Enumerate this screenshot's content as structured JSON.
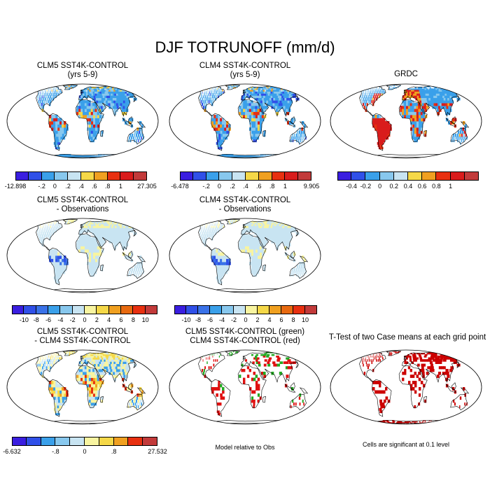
{
  "title": "DJF TOTRUNOFF (mm/d)",
  "chart_data": [
    {
      "type": "heatmap",
      "title": [
        "CLM5 SST4K-CONTROL",
        "(yrs 5-9)"
      ],
      "projection": "robinson",
      "colorbar_labels": [
        "-12.898",
        "-.2",
        "0",
        ".2",
        ".4",
        ".6",
        ".8",
        "1",
        "27.305"
      ],
      "colors": [
        "#3a1ee0",
        "#3050e8",
        "#3aa0ea",
        "#88c8ee",
        "#c8e4f2",
        "#f5d848",
        "#f0a020",
        "#e83010",
        "#d91c1c",
        "#c23a3a"
      ]
    },
    {
      "type": "heatmap",
      "title": [
        "CLM4 SST4K-CONTROL",
        "(yrs 5-9)"
      ],
      "projection": "robinson",
      "colorbar_labels": [
        "-6.478",
        "-.2",
        "0",
        ".2",
        ".4",
        ".6",
        ".8",
        "1",
        "9.905"
      ],
      "colors": [
        "#3a1ee0",
        "#3050e8",
        "#3aa0ea",
        "#88c8ee",
        "#c8e4f2",
        "#f5d848",
        "#f0a020",
        "#e83010",
        "#d91c1c",
        "#c23a3a"
      ]
    },
    {
      "type": "heatmap",
      "title": [
        "GRDC"
      ],
      "projection": "robinson",
      "colorbar_labels": [
        "-0.4",
        "-0.2",
        "0",
        "0.2",
        "0.4",
        "0.6",
        "0.8",
        "1"
      ],
      "colors": [
        "#3a1ee0",
        "#3050e8",
        "#3aa0ea",
        "#88c8ee",
        "#c8e4f2",
        "#f5d848",
        "#f0a020",
        "#e83010",
        "#d91c1c",
        "#c23a3a"
      ]
    },
    {
      "type": "heatmap",
      "title": [
        "CLM5 SST4K-CONTROL",
        "- Observations"
      ],
      "projection": "robinson",
      "colorbar_labels": [
        "-10",
        "-8",
        "-6",
        "-4",
        "-2",
        "0",
        "2",
        "4",
        "6",
        "8",
        "10"
      ],
      "colors": [
        "#3a1ee0",
        "#3050e8",
        "#3a72e8",
        "#3aa0ea",
        "#88c8ee",
        "#c8e4f2",
        "#f8f4a0",
        "#f5d848",
        "#f0a020",
        "#e86a10",
        "#e83010",
        "#c23a3a"
      ]
    },
    {
      "type": "heatmap",
      "title": [
        "CLM4 SST4K-CONTROL",
        "- Observations"
      ],
      "projection": "robinson",
      "colorbar_labels": [
        "-10",
        "-8",
        "-6",
        "-4",
        "-2",
        "0",
        "2",
        "4",
        "6",
        "8",
        "10"
      ],
      "colors": [
        "#3a1ee0",
        "#3050e8",
        "#3a72e8",
        "#3aa0ea",
        "#88c8ee",
        "#c8e4f2",
        "#f8f4a0",
        "#f5d848",
        "#f0a020",
        "#e86a10",
        "#e83010",
        "#c23a3a"
      ]
    },
    {
      "type": "heatmap",
      "title": [
        "CLM5 SST4K-CONTROL",
        "- CLM4 SST4K-CONTROL"
      ],
      "projection": "robinson",
      "colorbar_labels": [
        "-6.632",
        "-.8",
        "0",
        ".8",
        "27.532"
      ],
      "colors": [
        "#3a1ee0",
        "#3050e8",
        "#3aa0ea",
        "#88c8ee",
        "#c8e4f2",
        "#f8f4a0",
        "#f5d848",
        "#f0a020",
        "#e83010",
        "#c23a3a"
      ]
    },
    {
      "type": "heatmap",
      "title": [
        "CLM5 SST4K-CONTROL (green)",
        "CLM4 SST4K-CONTROL (red)"
      ],
      "projection": "robinson",
      "note": "Model relative to Obs"
    },
    {
      "type": "heatmap",
      "title": [
        "T-Test of two Case means at each grid point"
      ],
      "projection": "robinson",
      "note": "Cells are significant at 0.1 level"
    }
  ]
}
